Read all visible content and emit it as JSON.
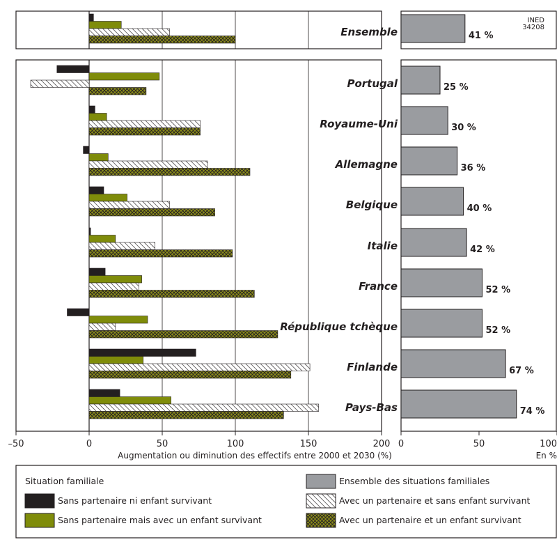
{
  "chart_data": [
    {
      "type": "bar",
      "orientation": "horizontal",
      "categories": [
        "Ensemble",
        "Portugal",
        "Royaume-Uni",
        "Allemagne",
        "Belgique",
        "Italie",
        "France",
        "République tchèque",
        "Finlande",
        "Pays-Bas"
      ],
      "series": [
        {
          "key": "s1",
          "values": [
            3,
            -22,
            4,
            -4,
            10,
            1,
            11,
            -15,
            73,
            21
          ]
        },
        {
          "key": "s2",
          "values": [
            22,
            48,
            12,
            13,
            26,
            18,
            36,
            40,
            37,
            56
          ]
        },
        {
          "key": "s3",
          "values": [
            55,
            -40,
            76,
            81,
            55,
            45,
            34,
            18,
            151,
            157
          ]
        },
        {
          "key": "s4",
          "values": [
            100,
            39,
            76,
            110,
            86,
            98,
            113,
            129,
            138,
            133
          ]
        }
      ],
      "xlabel": "Augmentation ou diminution des effectifs entre 2000 et 2030 (%)",
      "xlim": [
        -50,
        200
      ],
      "xticks": [
        "–50",
        "0",
        "50",
        "100",
        "150",
        "200"
      ],
      "grid": true
    },
    {
      "type": "bar",
      "orientation": "horizontal",
      "categories": [
        "Ensemble",
        "Portugal",
        "Royaume-Uni",
        "Allemagne",
        "Belgique",
        "Italie",
        "France",
        "République tchèque",
        "Finlande",
        "Pays-Bas"
      ],
      "values": [
        41,
        25,
        30,
        36,
        40,
        42,
        52,
        52,
        67,
        74
      ],
      "value_labels": [
        "41 %",
        "25 %",
        "30 %",
        "36 %",
        "40 %",
        "42 %",
        "52 %",
        "52 %",
        "67 %",
        "74 %"
      ],
      "xlabel": "En %",
      "xlim": [
        0,
        100
      ],
      "xticks": [
        "0",
        "50",
        "100"
      ],
      "color": "#9a9ca0"
    }
  ],
  "source_label": [
    "INED",
    "34208"
  ],
  "legend": {
    "title": "Situation familiale",
    "total_label": "Ensemble des situations familiales",
    "items": [
      {
        "key": "s1",
        "label": "Sans partenaire ni enfant survivant"
      },
      {
        "key": "s2",
        "label": "Sans partenaire mais avec un enfant survivant"
      },
      {
        "key": "s3",
        "label": "Avec un partenaire et sans enfant survivant"
      },
      {
        "key": "s4",
        "label": "Avec un partenaire et un enfant survivant"
      }
    ]
  },
  "colors": {
    "s1": "#231f20",
    "s2": "#7f8c0a",
    "bar_total": "#9a9ca0",
    "hatch": "#231f20",
    "cross_fill": "#8b8c1a",
    "panel_border": "#231f20",
    "grid": "#231f20"
  }
}
